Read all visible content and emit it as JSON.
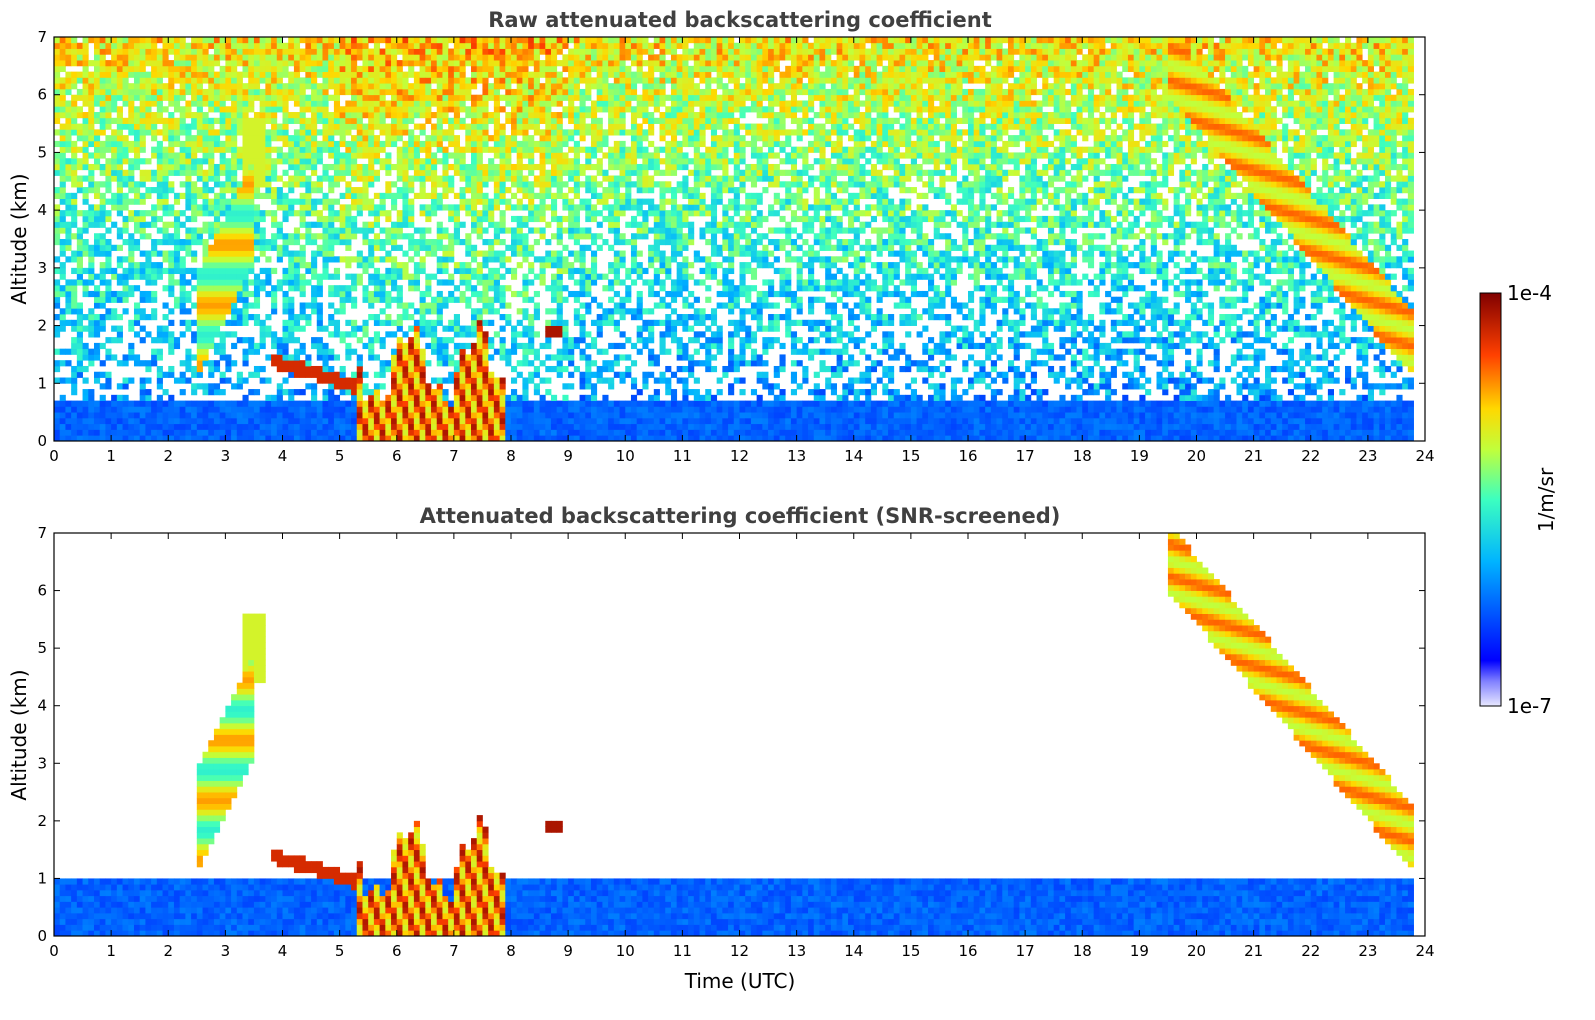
{
  "chart_data": [
    {
      "type": "heatmap",
      "title": "Raw attenuated backscattering coefficient",
      "xlabel": "",
      "ylabel": "Altitude (km)",
      "xlim": [
        0,
        24
      ],
      "ylim": [
        0,
        7
      ],
      "xticks": [
        "0",
        "1",
        "2",
        "3",
        "4",
        "5",
        "6",
        "7",
        "8",
        "9",
        "10",
        "11",
        "12",
        "13",
        "14",
        "15",
        "16",
        "17",
        "18",
        "19",
        "20",
        "21",
        "22",
        "23",
        "24"
      ],
      "yticks": [
        "0",
        "1",
        "2",
        "3",
        "4",
        "5",
        "6",
        "7"
      ],
      "features": [
        {
          "name": "boundary layer",
          "time": [
            0,
            23.8
          ],
          "alt": [
            0,
            0.8
          ],
          "level": "low"
        },
        {
          "name": "low cloud",
          "time": [
            5.3,
            7.9
          ],
          "alt": [
            0,
            2.1
          ],
          "level": "high"
        },
        {
          "name": "mid cloud",
          "time": [
            2.5,
            3.7
          ],
          "alt": [
            1.4,
            5.6
          ],
          "level": "medium"
        },
        {
          "name": "descending cirrus",
          "time": [
            19.5,
            23.8
          ],
          "alt": [
            2.1,
            7.0
          ],
          "level": "high"
        }
      ]
    },
    {
      "type": "heatmap",
      "title": "Attenuated backscattering coefficient (SNR-screened)",
      "xlabel": "Time (UTC)",
      "ylabel": "Altitude (km)",
      "xlim": [
        0,
        24
      ],
      "ylim": [
        0,
        7
      ],
      "xticks": [
        "0",
        "1",
        "2",
        "3",
        "4",
        "5",
        "6",
        "7",
        "8",
        "9",
        "10",
        "11",
        "12",
        "13",
        "14",
        "15",
        "16",
        "17",
        "18",
        "19",
        "20",
        "21",
        "22",
        "23",
        "24"
      ],
      "yticks": [
        "0",
        "1",
        "2",
        "3",
        "4",
        "5",
        "6",
        "7"
      ],
      "features": [
        {
          "name": "boundary layer",
          "time": [
            0,
            23.8
          ],
          "alt": [
            0,
            1.1
          ],
          "level": "low"
        },
        {
          "name": "low cloud",
          "time": [
            5.3,
            7.9
          ],
          "alt": [
            0,
            2.1
          ],
          "level": "high"
        },
        {
          "name": "mid cloud",
          "time": [
            2.5,
            3.7
          ],
          "alt": [
            1.4,
            5.6
          ],
          "level": "medium"
        },
        {
          "name": "descending cirrus",
          "time": [
            19.5,
            23.8
          ],
          "alt": [
            2.0,
            6.6
          ],
          "level": "high"
        }
      ]
    }
  ],
  "colorbar": {
    "label": "1/m/sr",
    "max_label": "1e-4",
    "min_label": "1e-7",
    "colormap": "jet"
  }
}
